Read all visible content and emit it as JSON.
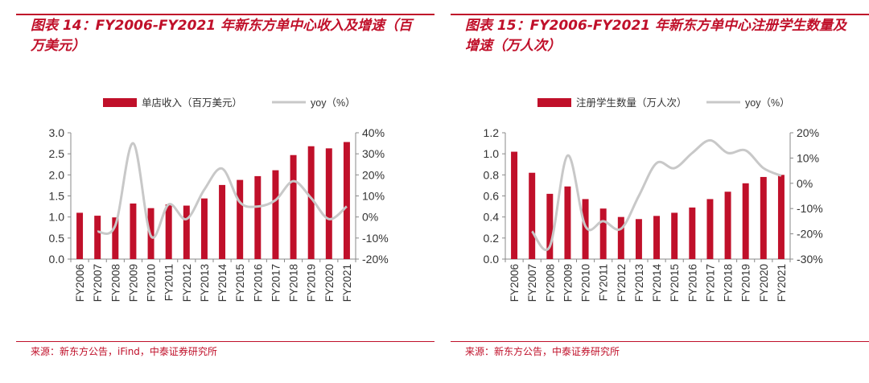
{
  "panels": [
    {
      "title": "图表 14：FY2006-FY2021 年新东方单中心收入及增速（百万美元）",
      "source": "来源：新东方公告，iFind，中泰证券研究所",
      "legend": {
        "bar": "单店收入（百万美元）",
        "line": "yoy（%）"
      },
      "colors": {
        "bar": "#c0102a",
        "line": "#c8c8c8",
        "accent": "#c0102a"
      }
    },
    {
      "title": "图表 15：FY2006-FY2021 年新东方单中心注册学生数量及增速（万人次）",
      "source": "来源：新东方公告，中泰证券研究所",
      "legend": {
        "bar": "注册学生数量（万人次）",
        "line": "yoy（%）"
      },
      "colors": {
        "bar": "#c0102a",
        "line": "#c8c8c8",
        "accent": "#c0102a"
      }
    }
  ],
  "chart_data": [
    {
      "type": "bar",
      "categories": [
        "FY2006",
        "FY2007",
        "FY2008",
        "FY2009",
        "FY2010",
        "FY2011",
        "FY2012",
        "FY2013",
        "FY2014",
        "FY2015",
        "FY2016",
        "FY2017",
        "FY2018",
        "FY2019",
        "FY2020",
        "FY2021"
      ],
      "series": [
        {
          "name": "单店收入（百万美元）",
          "kind": "bar",
          "axis": "left",
          "values": [
            1.1,
            1.03,
            0.99,
            1.32,
            1.21,
            1.3,
            1.27,
            1.44,
            1.76,
            1.88,
            1.97,
            2.11,
            2.47,
            2.68,
            2.63,
            2.78
          ]
        },
        {
          "name": "yoy（%）",
          "kind": "line",
          "axis": "right",
          "values": [
            null,
            -7,
            -4,
            35,
            -9,
            6,
            -1,
            13,
            23,
            7,
            5,
            8,
            17,
            9,
            -1,
            5
          ]
        }
      ],
      "ylim_left": [
        0,
        3.0
      ],
      "yticks_left": [
        "0.0",
        "0.5",
        "1.0",
        "1.5",
        "2.0",
        "2.5",
        "3.0"
      ],
      "ylim_right": [
        -20,
        40
      ],
      "yticks_right": [
        "-20%",
        "-10%",
        "0%",
        "10%",
        "20%",
        "30%",
        "40%"
      ],
      "legend_position": "top"
    },
    {
      "type": "bar",
      "categories": [
        "FY2006",
        "FY2007",
        "FY2008",
        "FY2009",
        "FY2010",
        "FY2011",
        "FY2012",
        "FY2013",
        "FY2014",
        "FY2015",
        "FY2016",
        "FY2017",
        "FY2018",
        "FY2019",
        "FY2020",
        "FY2021"
      ],
      "series": [
        {
          "name": "注册学生数量（万人次）",
          "kind": "bar",
          "axis": "left",
          "values": [
            1.02,
            0.82,
            0.62,
            0.69,
            0.57,
            0.48,
            0.4,
            0.38,
            0.41,
            0.44,
            0.49,
            0.57,
            0.64,
            0.72,
            0.78,
            0.8
          ]
        },
        {
          "name": "yoy（%）",
          "kind": "line",
          "axis": "right",
          "values": [
            null,
            -19,
            -25,
            11,
            -17,
            -15,
            -18,
            -5,
            8,
            6,
            12,
            17,
            12,
            13,
            6,
            3
          ]
        }
      ],
      "ylim_left": [
        0,
        1.2
      ],
      "yticks_left": [
        "0.0",
        "0.2",
        "0.4",
        "0.6",
        "0.8",
        "1.0",
        "1.2"
      ],
      "ylim_right": [
        -30,
        20
      ],
      "yticks_right": [
        "-30%",
        "-20%",
        "-10%",
        "0%",
        "10%",
        "20%"
      ],
      "legend_position": "top"
    }
  ]
}
